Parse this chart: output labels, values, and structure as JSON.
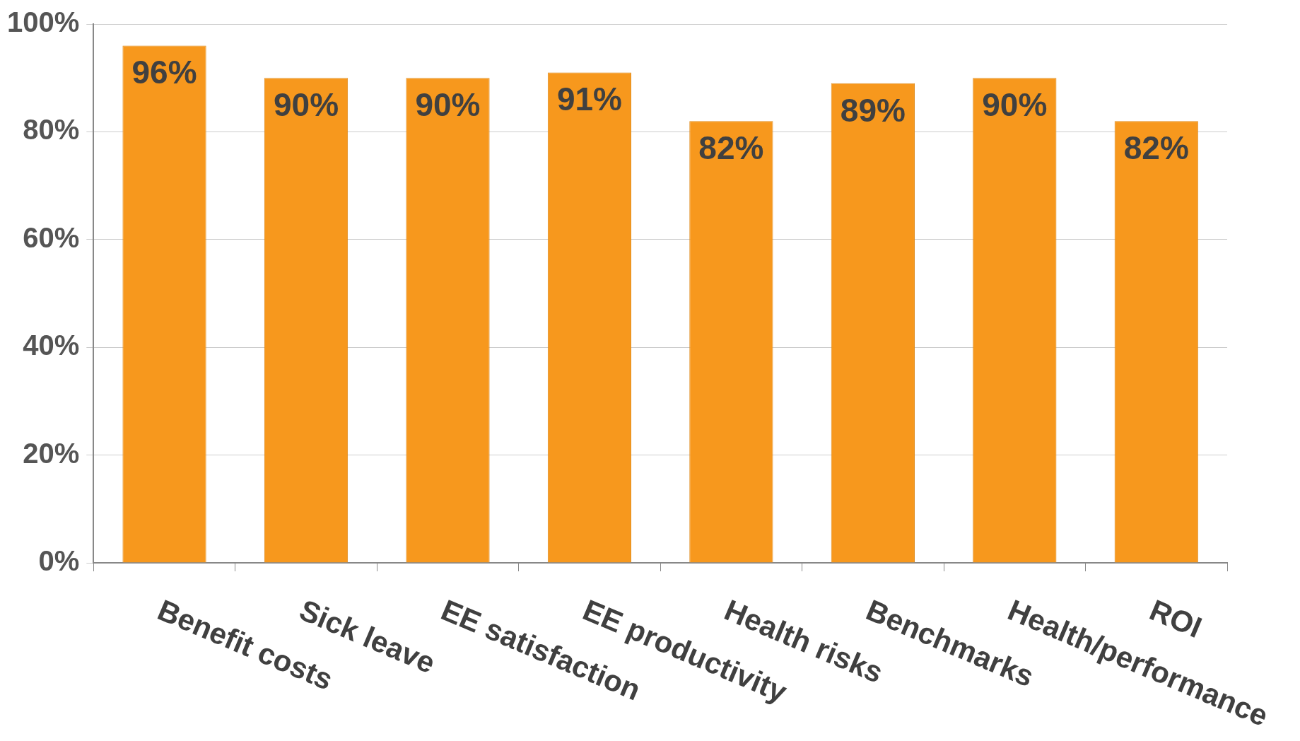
{
  "chart_data": {
    "type": "bar",
    "categories": [
      "Benefit costs",
      "Sick leave",
      "EE satisfaction",
      "EE productivity",
      "Health risks",
      "Benchmarks",
      "Health/performance",
      "ROI"
    ],
    "values": [
      96,
      90,
      90,
      91,
      82,
      89,
      90,
      82
    ],
    "color": "#f7981d",
    "ylim": [
      0,
      100
    ],
    "yticks": [
      {
        "value": 0,
        "label": "0%"
      },
      {
        "value": 20,
        "label": "20%"
      },
      {
        "value": 40,
        "label": "40%"
      },
      {
        "value": 60,
        "label": "60%"
      },
      {
        "value": 80,
        "label": "80%"
      },
      {
        "value": 100,
        "label": "100%"
      }
    ],
    "value_labels": [
      "96%",
      "90%",
      "90%",
      "91%",
      "82%",
      "89%",
      "90%",
      "82%"
    ],
    "grid": "y"
  }
}
